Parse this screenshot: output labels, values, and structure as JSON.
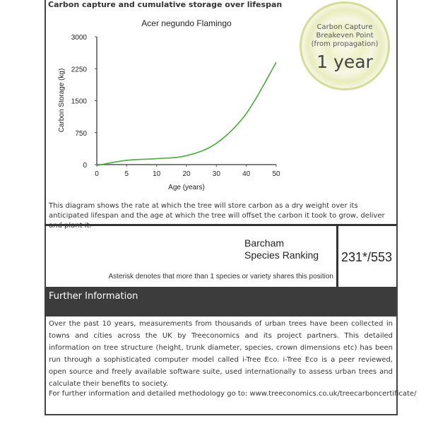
{
  "section_title": "Carbon capture and cumulative storage over lifespan",
  "chart_data": {
    "type": "line",
    "title": "Acer negundo Flamingo",
    "xlabel": "Age (years)",
    "ylabel": "Carbon Storage (kg)",
    "x_ticks": [
      "0",
      "5",
      "10",
      "20",
      "30",
      "40",
      "50"
    ],
    "y_ticks": [
      "0",
      "750",
      "1500",
      "2250",
      "3000"
    ],
    "ylim": [
      0,
      3000
    ],
    "x": [
      0,
      5,
      10,
      20,
      30,
      40,
      50
    ],
    "values": [
      -20,
      100,
      140,
      210,
      500,
      1200,
      2400
    ],
    "color": "#4aaa3a",
    "grid": false
  },
  "breakeven": {
    "label_lines": [
      "Carbon Capture",
      "Breakeven Point",
      "(from propagation)"
    ],
    "value": "1 year"
  },
  "description": "This diagram shows the rate at which the tree will store carbon as a dry weight over its anticipated lifespan and the age at which the tree will offset the carbon it took to grow, deliver and plant it.",
  "ranking": {
    "label_line1": "Barcham",
    "label_line2": "Species Ranking",
    "value": "231*/553",
    "note": "Asterisk denotes that more than 1 species or variety shares this position"
  },
  "further_info": {
    "title": "Further Information",
    "body": "Over the past 10 years, measurements from thousands of urban trees have been collected in towns and cities across the UK by Treeconomics and its project partners. This detailed information on tree structure (height, trunk diameter, species, crown dimensions etc) has been run through a sophisticated computer model called i-Tree Eco. i-Tree Eco is a peer reviewed, open source and freely available software suite, used internationally to assess urban trees and calculate their benefits to society.",
    "link_text": "For further information and detailed methodology go to: www.treeconomics.co.uk/treecarboncertificate/"
  }
}
